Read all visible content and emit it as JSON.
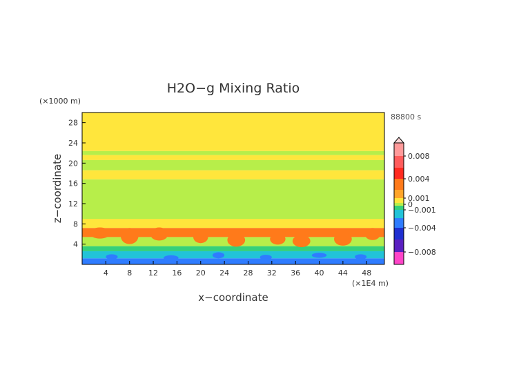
{
  "chart_data": {
    "type": "heatmap",
    "title": "H2O−g Mixing Ratio",
    "xlabel": "x−coordinate",
    "ylabel": "z−coordinate",
    "x_unit": "(×1E4 m)",
    "y_unit": "(×1000 m)",
    "time_label": "88800 s",
    "xlim": [
      0,
      51
    ],
    "ylim": [
      0,
      30
    ],
    "x_ticks": [
      4,
      8,
      12,
      16,
      20,
      24,
      28,
      32,
      36,
      40,
      44,
      48
    ],
    "y_ticks": [
      4,
      8,
      12,
      16,
      20,
      24,
      28
    ],
    "colorbar": {
      "range": [
        -0.01,
        0.01
      ],
      "tick_values": [
        0.008,
        0.004,
        0.001,
        0,
        -0.001,
        -0.004,
        -0.008
      ],
      "tick_labels": [
        "0.008",
        "0.004",
        "0.001",
        "0",
        "−0.001",
        "−0.004",
        "−0.008"
      ],
      "top_arrow": true,
      "levels": [
        {
          "lo": 0.008,
          "hi": 0.01,
          "color": "#ff9a9a"
        },
        {
          "lo": 0.006,
          "hi": 0.008,
          "color": "#ff5c5c"
        },
        {
          "lo": 0.004,
          "hi": 0.006,
          "color": "#ff2a1f"
        },
        {
          "lo": 0.002,
          "hi": 0.004,
          "color": "#ff7a1a"
        },
        {
          "lo": 0.001,
          "hi": 0.002,
          "color": "#ffa52a"
        },
        {
          "lo": 0.0003,
          "hi": 0.001,
          "color": "#ffe63c"
        },
        {
          "lo": -0.0003,
          "hi": 0.0003,
          "color": "#b7ee4a"
        },
        {
          "lo": -0.001,
          "hi": -0.0003,
          "color": "#35d07a"
        },
        {
          "lo": -0.002,
          "hi": -0.001,
          "color": "#22c3d8"
        },
        {
          "lo": -0.004,
          "hi": -0.002,
          "color": "#2f7cff"
        },
        {
          "lo": -0.006,
          "hi": -0.004,
          "color": "#1f2fd0"
        },
        {
          "lo": -0.008,
          "hi": -0.006,
          "color": "#5a20c0"
        },
        {
          "lo": -0.01,
          "hi": -0.008,
          "color": "#ff44c8"
        }
      ]
    },
    "field_bands": [
      {
        "z0": 0.0,
        "z1": 1.2,
        "value": -0.003
      },
      {
        "z0": 1.2,
        "z1": 2.6,
        "value": -0.0015
      },
      {
        "z0": 2.6,
        "z1": 3.6,
        "value": -0.0006
      },
      {
        "z0": 3.6,
        "z1": 5.4,
        "value": 0.0
      },
      {
        "z0": 5.4,
        "z1": 7.2,
        "value": 0.0025
      },
      {
        "z0": 7.2,
        "z1": 9.0,
        "value": 0.0006
      },
      {
        "z0": 9.0,
        "z1": 16.8,
        "value": 0.0
      },
      {
        "z0": 16.8,
        "z1": 18.6,
        "value": 0.0006
      },
      {
        "z0": 18.6,
        "z1": 20.6,
        "value": 0.0
      },
      {
        "z0": 20.6,
        "z1": 21.6,
        "value": 0.0006
      },
      {
        "z0": 21.6,
        "z1": 22.4,
        "value": 0.0
      },
      {
        "z0": 22.4,
        "z1": 30.0,
        "value": 0.0006
      }
    ],
    "features": [
      {
        "x": 3,
        "z": 6.2,
        "w": 3.5,
        "h": 2.2,
        "value": 0.0025
      },
      {
        "x": 8,
        "z": 5.6,
        "w": 3.0,
        "h": 3.2,
        "value": 0.0025
      },
      {
        "x": 13,
        "z": 6.0,
        "w": 3.0,
        "h": 2.6,
        "value": 0.0025
      },
      {
        "x": 20,
        "z": 5.4,
        "w": 2.5,
        "h": 2.4,
        "value": 0.0025
      },
      {
        "x": 26,
        "z": 4.8,
        "w": 3.0,
        "h": 2.6,
        "value": 0.0025
      },
      {
        "x": 33,
        "z": 5.0,
        "w": 2.6,
        "h": 2.2,
        "value": 0.0025
      },
      {
        "x": 37,
        "z": 4.6,
        "w": 3.0,
        "h": 2.4,
        "value": 0.0025
      },
      {
        "x": 44,
        "z": 5.0,
        "w": 3.0,
        "h": 2.6,
        "value": 0.0025
      },
      {
        "x": 49,
        "z": 6.0,
        "w": 2.6,
        "h": 2.4,
        "value": 0.0025
      },
      {
        "x": 5,
        "z": 1.5,
        "w": 2.0,
        "h": 1.0,
        "value": -0.0035
      },
      {
        "x": 15,
        "z": 1.3,
        "w": 2.5,
        "h": 1.0,
        "value": -0.0035
      },
      {
        "x": 23,
        "z": 1.8,
        "w": 2.0,
        "h": 1.2,
        "value": -0.0035
      },
      {
        "x": 31,
        "z": 1.4,
        "w": 2.0,
        "h": 1.0,
        "value": -0.0035
      },
      {
        "x": 40,
        "z": 1.8,
        "w": 2.5,
        "h": 1.0,
        "value": -0.0035
      },
      {
        "x": 47,
        "z": 1.5,
        "w": 2.0,
        "h": 1.0,
        "value": -0.0035
      }
    ]
  }
}
